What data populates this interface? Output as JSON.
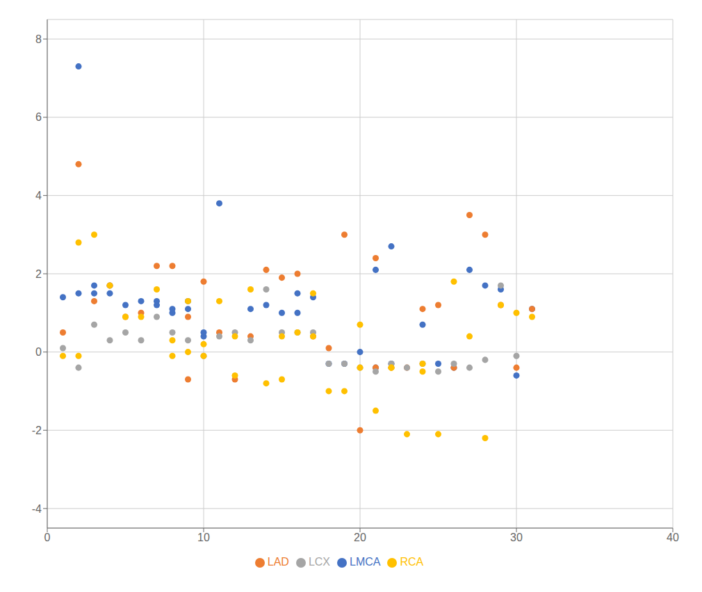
{
  "chart_data": {
    "type": "scatter",
    "series": [
      {
        "name": "LMCA",
        "color": "#4472C4",
        "x": [
          1,
          2,
          2,
          3,
          3,
          4,
          4,
          5,
          6,
          7,
          7,
          8,
          8,
          9,
          9,
          10,
          10,
          11,
          13,
          14,
          15,
          16,
          16,
          17,
          18,
          19,
          20,
          21,
          21,
          22,
          22,
          24,
          25,
          26,
          27,
          28,
          29,
          30,
          31
        ],
        "values": [
          1.4,
          1.5,
          7.3,
          1.5,
          1.7,
          1.5,
          1.7,
          1.2,
          1.3,
          1.3,
          1.2,
          1.0,
          1.1,
          1.3,
          1.1,
          0.4,
          0.5,
          3.8,
          1.1,
          1.2,
          1.0,
          1.0,
          1.5,
          1.4,
          -0.3,
          -0.3,
          0.0,
          2.1,
          -0.4,
          2.7,
          -0.3,
          0.7,
          -0.3,
          -0.4,
          2.1,
          1.7,
          1.6,
          -0.6,
          1.1
        ]
      },
      {
        "name": "LAD",
        "color": "#ED7D31",
        "x": [
          1,
          2,
          3,
          4,
          5,
          6,
          7,
          8,
          9,
          9,
          10,
          11,
          12,
          13,
          14,
          15,
          16,
          17,
          18,
          19,
          20,
          21,
          21,
          22,
          23,
          24,
          25,
          26,
          27,
          28,
          29,
          30,
          31
        ],
        "values": [
          0.5,
          4.8,
          1.3,
          1.7,
          0.9,
          1.0,
          2.2,
          2.2,
          -0.7,
          0.9,
          1.8,
          0.5,
          -0.7,
          0.4,
          2.1,
          1.9,
          2.0,
          0.4,
          0.1,
          3.0,
          -2.0,
          -0.4,
          2.4,
          -0.4,
          -0.4,
          1.1,
          1.2,
          -0.4,
          3.5,
          3.0,
          1.2,
          -0.4,
          1.1
        ]
      },
      {
        "name": "LCX",
        "color": "#A5A5A5",
        "x": [
          1,
          2,
          3,
          4,
          5,
          6,
          7,
          8,
          9,
          10,
          11,
          12,
          13,
          14,
          15,
          16,
          17,
          18,
          19,
          20,
          21,
          22,
          23,
          24,
          25,
          26,
          27,
          28,
          29,
          30
        ],
        "values": [
          0.1,
          -0.4,
          0.7,
          0.3,
          0.5,
          0.3,
          0.9,
          0.5,
          0.3,
          -0.1,
          0.4,
          0.5,
          0.3,
          1.6,
          0.5,
          0.5,
          0.5,
          -0.3,
          -0.3,
          -0.4,
          -0.5,
          -0.3,
          -0.4,
          -0.3,
          -0.5,
          -0.3,
          -0.4,
          -0.2,
          1.7,
          -0.1
        ]
      },
      {
        "name": "RCA",
        "color": "#FFC000",
        "x": [
          1,
          2,
          2,
          3,
          4,
          5,
          6,
          7,
          8,
          8,
          9,
          9,
          10,
          10,
          11,
          12,
          12,
          13,
          14,
          15,
          15,
          16,
          17,
          17,
          18,
          19,
          20,
          20,
          21,
          22,
          22,
          23,
          24,
          24,
          25,
          26,
          27,
          28,
          29,
          30,
          31
        ],
        "values": [
          -0.1,
          2.8,
          -0.1,
          3.0,
          1.7,
          0.9,
          0.9,
          1.6,
          -0.1,
          0.3,
          0.0,
          1.3,
          -0.1,
          0.2,
          1.3,
          -0.6,
          0.4,
          1.6,
          -0.8,
          -0.7,
          0.4,
          0.5,
          1.5,
          0.4,
          -1.0,
          -1.0,
          -0.4,
          0.7,
          -1.5,
          -0.4,
          -0.4,
          -2.1,
          -0.5,
          -0.3,
          -2.1,
          1.8,
          0.4,
          -2.2,
          1.2,
          1.0,
          0.9
        ]
      }
    ],
    "xlim": [
      0,
      40
    ],
    "ylim": [
      -4.5,
      8.5
    ],
    "xticks": [
      0,
      10,
      20,
      30,
      40
    ],
    "yticks": [
      -4,
      -2,
      0,
      2,
      4,
      6,
      8
    ],
    "grid": true,
    "legend": "bottom",
    "marker": "circle"
  }
}
